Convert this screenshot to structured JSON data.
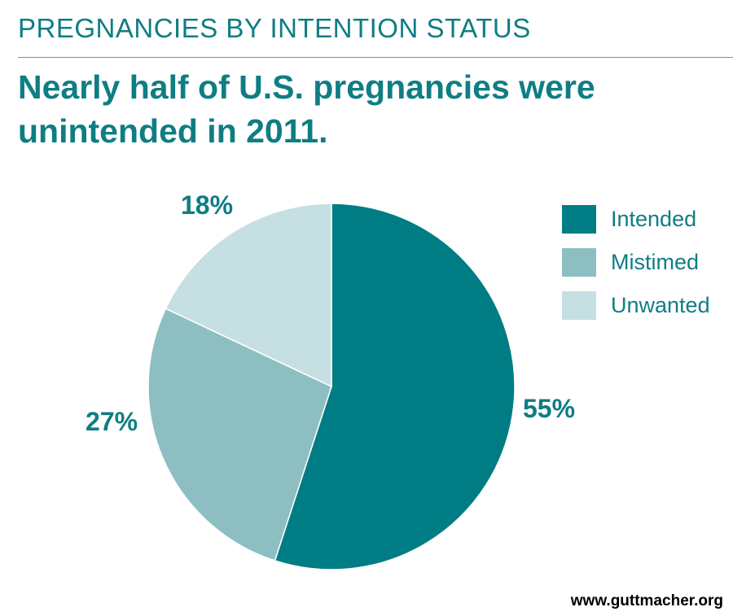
{
  "header": {
    "kicker": "PREGNANCIES BY INTENTION STATUS",
    "headline": "Nearly half of U.S. pregnancies were unintended in 2011."
  },
  "chart_data": {
    "type": "pie",
    "title": "PREGNANCIES BY INTENTION STATUS",
    "subtitle": "Nearly half of U.S. pregnancies were unintended in 2011.",
    "slices": [
      {
        "name": "Intended",
        "value": 55,
        "label": "55%",
        "color": "#007d84"
      },
      {
        "name": "Mistimed",
        "value": 27,
        "label": "27%",
        "color": "#8dbfc2"
      },
      {
        "name": "Unwanted",
        "value": 18,
        "label": "18%",
        "color": "#c6dfe2"
      }
    ],
    "start": "12 o'clock",
    "direction": "clockwise",
    "legend_position": "right"
  },
  "legend": {
    "items": [
      {
        "label": "Intended",
        "color": "#007d84"
      },
      {
        "label": "Mistimed",
        "color": "#8dbfc2"
      },
      {
        "label": "Unwanted",
        "color": "#c6dfe2"
      }
    ]
  },
  "footer": {
    "source": "www.guttmacher.org"
  }
}
